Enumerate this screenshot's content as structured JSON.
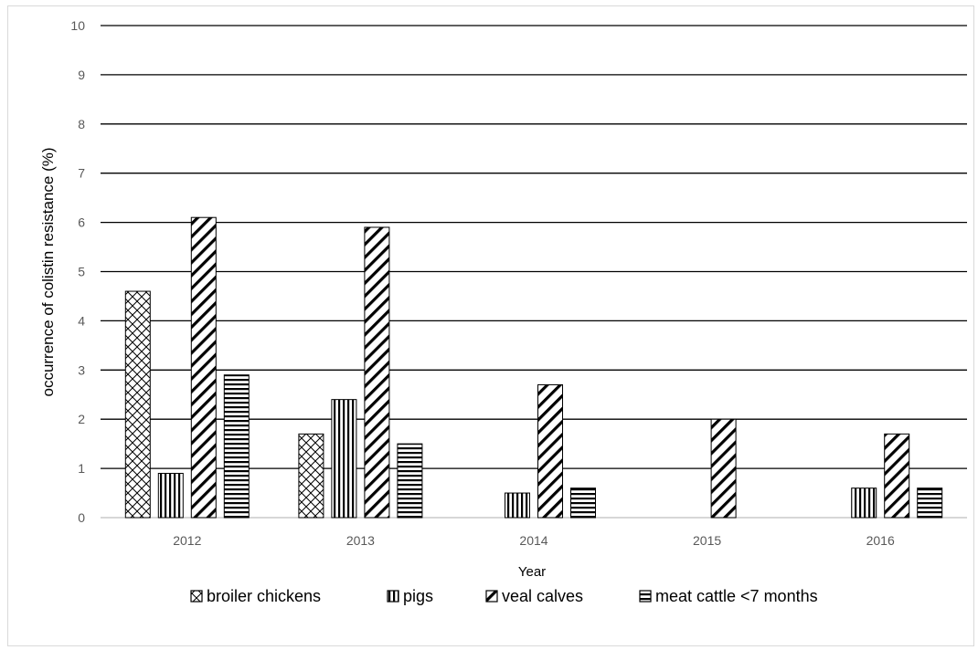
{
  "chart_data": {
    "type": "bar",
    "categories": [
      "2012",
      "2013",
      "2014",
      "2015",
      "2016"
    ],
    "series": [
      {
        "name": "broiler chickens",
        "pattern": "crosshatch",
        "values": [
          4.6,
          1.7,
          null,
          null,
          null
        ]
      },
      {
        "name": "pigs",
        "pattern": "vertical",
        "values": [
          0.9,
          2.4,
          0.5,
          null,
          0.6
        ]
      },
      {
        "name": "veal calves",
        "pattern": "diagonal",
        "values": [
          6.1,
          5.9,
          2.7,
          2.0,
          1.7
        ]
      },
      {
        "name": "meat cattle <7 months",
        "pattern": "horizontal",
        "values": [
          2.9,
          1.5,
          0.6,
          null,
          0.6
        ]
      }
    ],
    "title": "",
    "xlabel": "Year",
    "ylabel": "occurrence of colistin resistance (%)",
    "ylim": [
      0,
      10
    ],
    "yticks": [
      "0",
      "1",
      "2",
      "3",
      "4",
      "5",
      "6",
      "7",
      "8",
      "9",
      "10"
    ],
    "grid": true,
    "legend_position": "bottom"
  },
  "colors": {
    "bar_stroke": "#000000",
    "gridline": "#000000",
    "tick_text": "#595959",
    "background": "#ffffff"
  }
}
